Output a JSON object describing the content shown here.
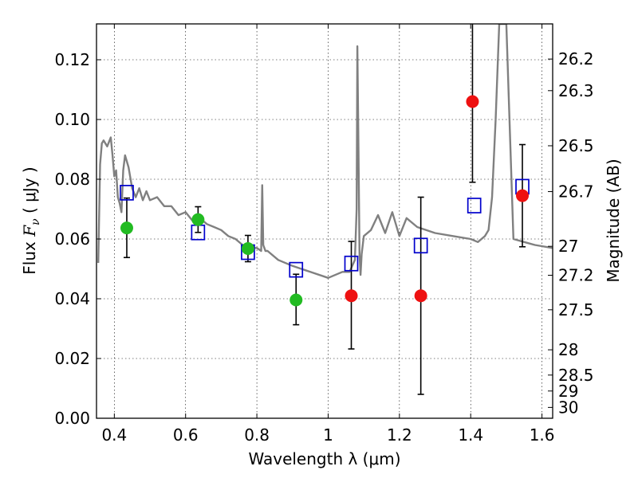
{
  "chart_data": {
    "type": "scatter",
    "xlabel": "Wavelength  λ (μm)",
    "ylabel_left": {
      "pre": "Flux  ",
      "symbol_main": "F",
      "symbol_sub": "ν",
      "post": "  ( μJy )"
    },
    "ylabel_right": "Magnitude (AB)",
    "xlim": [
      0.35,
      1.63
    ],
    "ylim": [
      0.0,
      0.132
    ],
    "grid": true,
    "xticks": [
      {
        "value": 0.4,
        "label": "0.4"
      },
      {
        "value": 0.6,
        "label": "0.6"
      },
      {
        "value": 0.8,
        "label": "0.8"
      },
      {
        "value": 1.0,
        "label": "1"
      },
      {
        "value": 1.2,
        "label": "1.2"
      },
      {
        "value": 1.4,
        "label": "1.4"
      },
      {
        "value": 1.6,
        "label": "1.6"
      }
    ],
    "yticks": [
      {
        "value": 0.0,
        "label": "0.00"
      },
      {
        "value": 0.02,
        "label": "0.02"
      },
      {
        "value": 0.04,
        "label": "0.04"
      },
      {
        "value": 0.06,
        "label": "0.06"
      },
      {
        "value": 0.08,
        "label": "0.08"
      },
      {
        "value": 0.1,
        "label": "0.10"
      },
      {
        "value": 0.12,
        "label": "0.12"
      }
    ],
    "right_ticks": [
      {
        "value": 26.2,
        "label": "26.2"
      },
      {
        "value": 26.3,
        "label": "26.3"
      },
      {
        "value": 26.5,
        "label": "26.5"
      },
      {
        "value": 26.7,
        "label": "26.7"
      },
      {
        "value": 27.0,
        "label": "27"
      },
      {
        "value": 27.2,
        "label": "27.2"
      },
      {
        "value": 27.5,
        "label": "27.5"
      },
      {
        "value": 28.0,
        "label": "28"
      },
      {
        "value": 28.5,
        "label": "28.5"
      },
      {
        "value": 29.0,
        "label": "29"
      },
      {
        "value": 30.0,
        "label": "30"
      }
    ],
    "observed": [
      {
        "x": 0.435,
        "y": 0.0637,
        "err_low": 0.0538,
        "err_high": 0.0737,
        "color": "#22bb22"
      },
      {
        "x": 0.635,
        "y": 0.0665,
        "err_low": 0.0622,
        "err_high": 0.0708,
        "color": "#22bb22"
      },
      {
        "x": 0.775,
        "y": 0.0568,
        "err_low": 0.0524,
        "err_high": 0.0612,
        "color": "#22bb22"
      },
      {
        "x": 0.91,
        "y": 0.0396,
        "err_low": 0.0313,
        "err_high": 0.0482,
        "color": "#22bb22"
      },
      {
        "x": 1.065,
        "y": 0.041,
        "err_low": 0.0232,
        "err_high": 0.0592,
        "color": "#ee1111"
      },
      {
        "x": 1.26,
        "y": 0.041,
        "err_low": 0.008,
        "err_high": 0.074,
        "color": "#ee1111"
      },
      {
        "x": 1.405,
        "y": 0.106,
        "err_low": 0.079,
        "err_high": 0.135,
        "color": "#ee1111"
      },
      {
        "x": 1.545,
        "y": 0.0745,
        "err_low": 0.0574,
        "err_high": 0.0916,
        "color": "#ee1111"
      }
    ],
    "model_bandpass": [
      {
        "x": 0.435,
        "y": 0.0755
      },
      {
        "x": 0.635,
        "y": 0.0622
      },
      {
        "x": 0.775,
        "y": 0.0556
      },
      {
        "x": 0.91,
        "y": 0.0497
      },
      {
        "x": 1.065,
        "y": 0.0518
      },
      {
        "x": 1.26,
        "y": 0.0578
      },
      {
        "x": 1.41,
        "y": 0.0712
      },
      {
        "x": 1.545,
        "y": 0.0775
      }
    ],
    "model_spectrum": {
      "color": "#808080",
      "x": [
        0.355,
        0.36,
        0.365,
        0.37,
        0.38,
        0.39,
        0.395,
        0.4,
        0.405,
        0.41,
        0.415,
        0.42,
        0.425,
        0.43,
        0.44,
        0.45,
        0.46,
        0.47,
        0.48,
        0.49,
        0.5,
        0.52,
        0.54,
        0.56,
        0.58,
        0.6,
        0.62,
        0.64,
        0.66,
        0.68,
        0.7,
        0.72,
        0.74,
        0.76,
        0.78,
        0.8,
        0.812,
        0.815,
        0.818,
        0.821,
        0.824,
        0.83,
        0.86,
        0.9,
        0.95,
        1.0,
        1.04,
        1.06,
        1.075,
        1.08,
        1.082,
        1.085,
        1.088,
        1.091,
        1.094,
        1.1,
        1.12,
        1.14,
        1.16,
        1.18,
        1.2,
        1.22,
        1.25,
        1.3,
        1.35,
        1.4,
        1.42,
        1.44,
        1.45,
        1.46,
        1.47,
        1.48,
        1.49,
        1.5,
        1.52,
        1.55,
        1.58,
        1.63
      ],
      "y": [
        0.052,
        0.085,
        0.092,
        0.093,
        0.091,
        0.094,
        0.088,
        0.081,
        0.083,
        0.074,
        0.072,
        0.069,
        0.083,
        0.088,
        0.084,
        0.077,
        0.074,
        0.077,
        0.073,
        0.076,
        0.073,
        0.074,
        0.071,
        0.071,
        0.068,
        0.069,
        0.066,
        0.067,
        0.065,
        0.064,
        0.063,
        0.061,
        0.06,
        0.058,
        0.057,
        0.057,
        0.056,
        0.078,
        0.058,
        0.057,
        0.056,
        0.056,
        0.053,
        0.051,
        0.049,
        0.047,
        0.049,
        0.049,
        0.053,
        0.07,
        0.1245,
        0.09,
        0.055,
        0.048,
        0.055,
        0.061,
        0.063,
        0.068,
        0.062,
        0.069,
        0.061,
        0.067,
        0.064,
        0.062,
        0.061,
        0.06,
        0.059,
        0.061,
        0.063,
        0.074,
        0.1,
        0.132,
        0.132,
        0.132,
        0.06,
        0.059,
        0.058,
        0.057
      ]
    }
  }
}
